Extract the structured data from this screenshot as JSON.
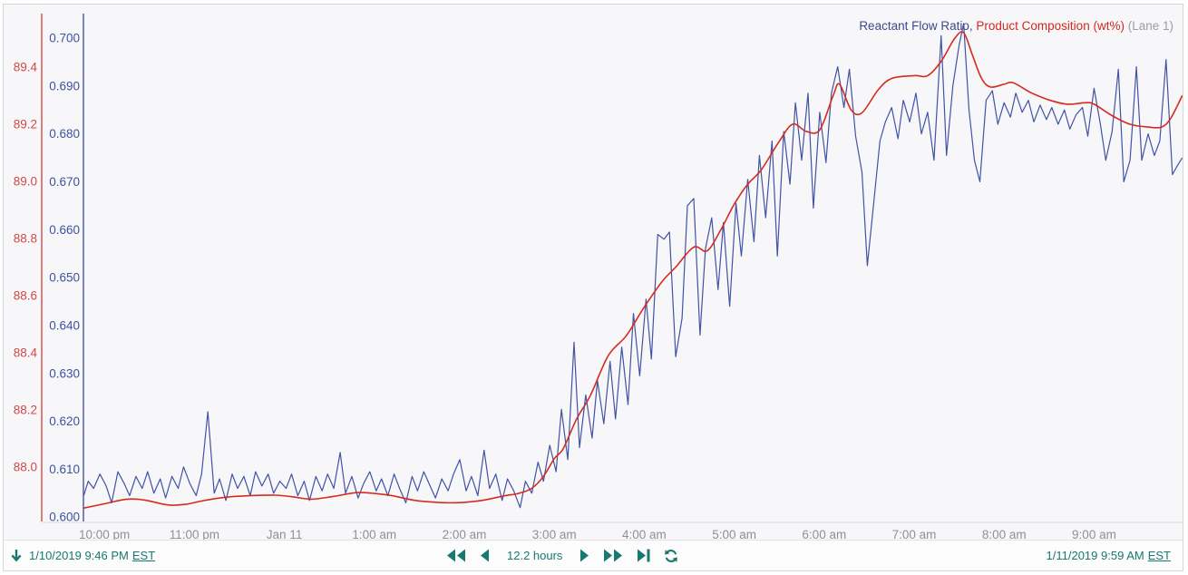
{
  "legend": {
    "series1": "Reactant Flow Ratio",
    "separator": ", ",
    "series2": "Product Composition (wt%)",
    "lane": " (Lane 1)"
  },
  "toolbar": {
    "start_time": "1/10/2019 9:46 PM",
    "start_tz": "EST",
    "duration": "12.2 hours",
    "end_time": "1/11/2019 9:59 AM",
    "end_tz": "EST"
  },
  "colors": {
    "blue_line": "#4153a4",
    "blue_label": "#3e51a0",
    "red_line": "#d52b1e",
    "red_label": "#d24848",
    "teal": "#17796f",
    "x_label": "#8b909a",
    "baseline": "#dcdce0",
    "background": "#f7f7f9"
  },
  "chart_data": {
    "type": "line",
    "x_axis": {
      "range_hours": [
        -2.2333,
        9.9833
      ],
      "labels": [
        {
          "t": -2,
          "label": "10:00 pm"
        },
        {
          "t": -1,
          "label": "11:00 pm"
        },
        {
          "t": 0,
          "label": "Jan 11"
        },
        {
          "t": 1,
          "label": "1:00 am"
        },
        {
          "t": 2,
          "label": "2:00 am"
        },
        {
          "t": 3,
          "label": "3:00 am"
        },
        {
          "t": 4,
          "label": "4:00 am"
        },
        {
          "t": 5,
          "label": "5:00 am"
        },
        {
          "t": 6,
          "label": "6:00 am"
        },
        {
          "t": 7,
          "label": "7:00 am"
        },
        {
          "t": 8,
          "label": "8:00 am"
        },
        {
          "t": 9,
          "label": "9:00 am"
        }
      ]
    },
    "axes": {
      "outer": {
        "name": "Product Composition (wt%)",
        "color": "#d24848",
        "line_color": "#d24848",
        "ylim": [
          87.81,
          89.587
        ],
        "decimals": 1,
        "ticks": [
          88.0,
          88.2,
          88.4,
          88.6,
          88.8,
          89.0,
          89.2,
          89.4
        ]
      },
      "inner": {
        "name": "Reactant Flow Ratio",
        "color": "#3e51a0",
        "line_color": "#4153a4",
        "ylim": [
          0.5991,
          0.7051
        ],
        "decimals": 3,
        "ticks": [
          0.6,
          0.61,
          0.62,
          0.63,
          0.64,
          0.65,
          0.66,
          0.67,
          0.68,
          0.69,
          0.7
        ]
      }
    },
    "series": [
      {
        "name": "Reactant Flow Ratio",
        "axis": "inner",
        "color": "#4153a4",
        "smooth": false,
        "points": [
          [
            -2.23,
            0.6045
          ],
          [
            -2.18,
            0.6075
          ],
          [
            -2.12,
            0.606
          ],
          [
            -2.05,
            0.609
          ],
          [
            -1.98,
            0.6065
          ],
          [
            -1.92,
            0.603
          ],
          [
            -1.85,
            0.6095
          ],
          [
            -1.78,
            0.607
          ],
          [
            -1.72,
            0.6045
          ],
          [
            -1.65,
            0.6085
          ],
          [
            -1.58,
            0.606
          ],
          [
            -1.52,
            0.6095
          ],
          [
            -1.45,
            0.605
          ],
          [
            -1.38,
            0.608
          ],
          [
            -1.32,
            0.604
          ],
          [
            -1.25,
            0.6085
          ],
          [
            -1.18,
            0.606
          ],
          [
            -1.12,
            0.6105
          ],
          [
            -1.05,
            0.607
          ],
          [
            -0.98,
            0.6045
          ],
          [
            -0.92,
            0.609
          ],
          [
            -0.85,
            0.622
          ],
          [
            -0.78,
            0.605
          ],
          [
            -0.72,
            0.608
          ],
          [
            -0.65,
            0.6035
          ],
          [
            -0.58,
            0.609
          ],
          [
            -0.52,
            0.606
          ],
          [
            -0.45,
            0.6085
          ],
          [
            -0.38,
            0.6045
          ],
          [
            -0.32,
            0.6095
          ],
          [
            -0.25,
            0.6065
          ],
          [
            -0.18,
            0.609
          ],
          [
            -0.12,
            0.605
          ],
          [
            -0.05,
            0.6075
          ],
          [
            0.02,
            0.606
          ],
          [
            0.08,
            0.609
          ],
          [
            0.15,
            0.6045
          ],
          [
            0.22,
            0.6075
          ],
          [
            0.28,
            0.6035
          ],
          [
            0.35,
            0.6085
          ],
          [
            0.42,
            0.6055
          ],
          [
            0.48,
            0.609
          ],
          [
            0.55,
            0.606
          ],
          [
            0.62,
            0.6135
          ],
          [
            0.68,
            0.605
          ],
          [
            0.75,
            0.6085
          ],
          [
            0.82,
            0.604
          ],
          [
            0.88,
            0.607
          ],
          [
            0.95,
            0.6095
          ],
          [
            1.02,
            0.6055
          ],
          [
            1.08,
            0.608
          ],
          [
            1.15,
            0.6045
          ],
          [
            1.22,
            0.609
          ],
          [
            1.28,
            0.606
          ],
          [
            1.35,
            0.603
          ],
          [
            1.42,
            0.6085
          ],
          [
            1.48,
            0.6055
          ],
          [
            1.55,
            0.6095
          ],
          [
            1.62,
            0.6065
          ],
          [
            1.68,
            0.604
          ],
          [
            1.75,
            0.608
          ],
          [
            1.82,
            0.6055
          ],
          [
            1.88,
            0.609
          ],
          [
            1.95,
            0.612
          ],
          [
            2.02,
            0.6055
          ],
          [
            2.08,
            0.6085
          ],
          [
            2.15,
            0.6045
          ],
          [
            2.22,
            0.614
          ],
          [
            2.28,
            0.606
          ],
          [
            2.35,
            0.609
          ],
          [
            2.42,
            0.6035
          ],
          [
            2.48,
            0.608
          ],
          [
            2.55,
            0.6055
          ],
          [
            2.62,
            0.602
          ],
          [
            2.68,
            0.6075
          ],
          [
            2.75,
            0.605
          ],
          [
            2.82,
            0.6115
          ],
          [
            2.88,
            0.6075
          ],
          [
            2.95,
            0.615
          ],
          [
            3.02,
            0.6095
          ],
          [
            3.08,
            0.6225
          ],
          [
            3.15,
            0.612
          ],
          [
            3.22,
            0.6365
          ],
          [
            3.28,
            0.6145
          ],
          [
            3.35,
            0.6255
          ],
          [
            3.42,
            0.6165
          ],
          [
            3.48,
            0.6285
          ],
          [
            3.55,
            0.6195
          ],
          [
            3.62,
            0.6325
          ],
          [
            3.68,
            0.6205
          ],
          [
            3.75,
            0.6355
          ],
          [
            3.82,
            0.6235
          ],
          [
            3.88,
            0.6425
          ],
          [
            3.95,
            0.6295
          ],
          [
            4.02,
            0.6455
          ],
          [
            4.08,
            0.633
          ],
          [
            4.15,
            0.659
          ],
          [
            4.22,
            0.658
          ],
          [
            4.28,
            0.6595
          ],
          [
            4.35,
            0.6335
          ],
          [
            4.42,
            0.6415
          ],
          [
            4.48,
            0.665
          ],
          [
            4.55,
            0.6665
          ],
          [
            4.62,
            0.638
          ],
          [
            4.68,
            0.656
          ],
          [
            4.75,
            0.6625
          ],
          [
            4.82,
            0.6475
          ],
          [
            4.88,
            0.6615
          ],
          [
            4.95,
            0.644
          ],
          [
            5.02,
            0.6655
          ],
          [
            5.08,
            0.6545
          ],
          [
            5.15,
            0.6705
          ],
          [
            5.22,
            0.6575
          ],
          [
            5.28,
            0.6755
          ],
          [
            5.35,
            0.6625
          ],
          [
            5.42,
            0.6785
          ],
          [
            5.48,
            0.6545
          ],
          [
            5.55,
            0.6805
          ],
          [
            5.62,
            0.6695
          ],
          [
            5.68,
            0.6865
          ],
          [
            5.75,
            0.6745
          ],
          [
            5.82,
            0.6885
          ],
          [
            5.88,
            0.6645
          ],
          [
            5.95,
            0.6845
          ],
          [
            6.02,
            0.674
          ],
          [
            6.08,
            0.6885
          ],
          [
            6.15,
            0.694
          ],
          [
            6.22,
            0.6855
          ],
          [
            6.28,
            0.6935
          ],
          [
            6.35,
            0.6795
          ],
          [
            6.42,
            0.672
          ],
          [
            6.48,
            0.6525
          ],
          [
            6.55,
            0.6655
          ],
          [
            6.62,
            0.6785
          ],
          [
            6.68,
            0.6825
          ],
          [
            6.75,
            0.6855
          ],
          [
            6.82,
            0.679
          ],
          [
            6.88,
            0.687
          ],
          [
            6.95,
            0.6825
          ],
          [
            7.02,
            0.6885
          ],
          [
            7.08,
            0.68
          ],
          [
            7.15,
            0.6845
          ],
          [
            7.22,
            0.6745
          ],
          [
            7.3,
            0.7005
          ],
          [
            7.36,
            0.6755
          ],
          [
            7.43,
            0.69
          ],
          [
            7.5,
            0.6985
          ],
          [
            7.55,
            0.703
          ],
          [
            7.61,
            0.685
          ],
          [
            7.67,
            0.6745
          ],
          [
            7.73,
            0.67
          ],
          [
            7.8,
            0.687
          ],
          [
            7.87,
            0.689
          ],
          [
            7.93,
            0.682
          ],
          [
            8.0,
            0.6865
          ],
          [
            8.07,
            0.6835
          ],
          [
            8.13,
            0.6885
          ],
          [
            8.2,
            0.6845
          ],
          [
            8.27,
            0.687
          ],
          [
            8.33,
            0.6825
          ],
          [
            8.4,
            0.686
          ],
          [
            8.47,
            0.683
          ],
          [
            8.53,
            0.6855
          ],
          [
            8.6,
            0.682
          ],
          [
            8.67,
            0.685
          ],
          [
            8.73,
            0.681
          ],
          [
            8.8,
            0.684
          ],
          [
            8.87,
            0.6855
          ],
          [
            8.93,
            0.6795
          ],
          [
            9.0,
            0.6895
          ],
          [
            9.07,
            0.682
          ],
          [
            9.13,
            0.6745
          ],
          [
            9.2,
            0.6805
          ],
          [
            9.27,
            0.6935
          ],
          [
            9.33,
            0.67
          ],
          [
            9.4,
            0.6745
          ],
          [
            9.47,
            0.694
          ],
          [
            9.53,
            0.6745
          ],
          [
            9.6,
            0.68
          ],
          [
            9.67,
            0.6755
          ],
          [
            9.73,
            0.6785
          ],
          [
            9.8,
            0.6955
          ],
          [
            9.87,
            0.6715
          ],
          [
            9.93,
            0.6735
          ],
          [
            9.98,
            0.675
          ]
        ]
      },
      {
        "name": "Product Composition (wt%)",
        "axis": "outer",
        "color": "#d52b1e",
        "smooth": true,
        "points": [
          [
            -2.23,
            87.857
          ],
          [
            -2.0,
            87.872
          ],
          [
            -1.75,
            87.888
          ],
          [
            -1.55,
            87.885
          ],
          [
            -1.3,
            87.868
          ],
          [
            -1.1,
            87.87
          ],
          [
            -0.9,
            87.883
          ],
          [
            -0.65,
            87.895
          ],
          [
            -0.4,
            87.9
          ],
          [
            -0.1,
            87.902
          ],
          [
            0.1,
            87.896
          ],
          [
            0.3,
            87.888
          ],
          [
            0.55,
            87.898
          ],
          [
            0.8,
            87.911
          ],
          [
            1.0,
            87.908
          ],
          [
            1.2,
            87.9
          ],
          [
            1.45,
            87.884
          ],
          [
            1.7,
            87.877
          ],
          [
            1.95,
            87.876
          ],
          [
            2.2,
            87.884
          ],
          [
            2.45,
            87.9
          ],
          [
            2.6,
            87.908
          ],
          [
            2.75,
            87.926
          ],
          [
            2.88,
            87.968
          ],
          [
            3.0,
            88.03
          ],
          [
            3.1,
            88.065
          ],
          [
            3.25,
            88.17
          ],
          [
            3.4,
            88.25
          ],
          [
            3.6,
            88.39
          ],
          [
            3.8,
            88.46
          ],
          [
            4.0,
            88.56
          ],
          [
            4.2,
            88.65
          ],
          [
            4.35,
            88.7
          ],
          [
            4.55,
            88.77
          ],
          [
            4.7,
            88.757
          ],
          [
            4.85,
            88.83
          ],
          [
            5.0,
            88.92
          ],
          [
            5.15,
            88.99
          ],
          [
            5.3,
            89.04
          ],
          [
            5.5,
            89.14
          ],
          [
            5.65,
            89.2
          ],
          [
            5.8,
            89.175
          ],
          [
            5.95,
            89.18
          ],
          [
            6.1,
            89.3
          ],
          [
            6.17,
            89.34
          ],
          [
            6.3,
            89.25
          ],
          [
            6.42,
            89.24
          ],
          [
            6.6,
            89.32
          ],
          [
            6.75,
            89.36
          ],
          [
            7.0,
            89.37
          ],
          [
            7.15,
            89.37
          ],
          [
            7.3,
            89.42
          ],
          [
            7.45,
            89.5
          ],
          [
            7.55,
            89.52
          ],
          [
            7.65,
            89.44
          ],
          [
            7.75,
            89.36
          ],
          [
            7.85,
            89.33
          ],
          [
            8.0,
            89.34
          ],
          [
            8.1,
            89.345
          ],
          [
            8.3,
            89.31
          ],
          [
            8.5,
            89.285
          ],
          [
            8.7,
            89.27
          ],
          [
            8.9,
            89.275
          ],
          [
            9.0,
            89.27
          ],
          [
            9.2,
            89.23
          ],
          [
            9.4,
            89.2
          ],
          [
            9.6,
            89.19
          ],
          [
            9.75,
            89.19
          ],
          [
            9.85,
            89.22
          ],
          [
            9.98,
            89.3
          ]
        ]
      }
    ]
  }
}
